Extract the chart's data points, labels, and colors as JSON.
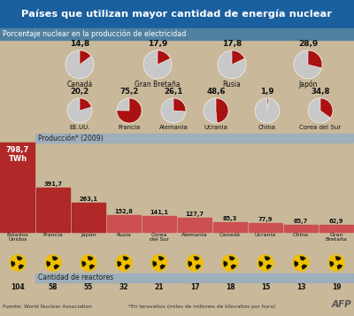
{
  "title": "Países que utilizan mayor cantidad de energía nuclear",
  "subtitle": "Porcentaje nuclear en la producción de electricidad",
  "bg_color": "#c9b99a",
  "header_bg": "#1a5f9e",
  "subtitle_bg": "#5080a0",
  "top_pies": [
    {
      "label": "Canadá",
      "value": 14.8,
      "xf": 0.225
    },
    {
      "label": "Gran Bretaña",
      "value": 17.9,
      "xf": 0.445
    },
    {
      "label": "Rusia",
      "value": 17.8,
      "xf": 0.655
    },
    {
      "label": "Japón",
      "value": 28.9,
      "xf": 0.87
    }
  ],
  "bottom_pies": [
    {
      "label": "EE.UU.",
      "value": 20.2,
      "xf": 0.225
    },
    {
      "label": "Francia",
      "value": 75.2,
      "xf": 0.365
    },
    {
      "label": "Alemania",
      "value": 26.1,
      "xf": 0.49
    },
    {
      "label": "Ucrania",
      "value": 48.6,
      "xf": 0.61
    },
    {
      "label": "China",
      "value": 1.9,
      "xf": 0.755
    },
    {
      "label": "Corea del Sur",
      "value": 34.8,
      "xf": 0.905
    }
  ],
  "bars": [
    {
      "label": "Estados\nUnidos",
      "value": 798.7,
      "reactors": 104
    },
    {
      "label": "Francia",
      "value": 391.7,
      "reactors": 58
    },
    {
      "label": "Japón",
      "value": 263.1,
      "reactors": 55
    },
    {
      "label": "Rusia",
      "value": 152.8,
      "reactors": 32
    },
    {
      "label": "Corea\ndel Sur",
      "value": 141.1,
      "reactors": 21
    },
    {
      "label": "Alemania",
      "value": 127.7,
      "reactors": 17
    },
    {
      "label": "Canadá",
      "value": 85.3,
      "reactors": 18
    },
    {
      "label": "Ucrania",
      "value": 77.9,
      "reactors": 15
    },
    {
      "label": "China",
      "value": 65.7,
      "reactors": 13
    },
    {
      "label": "Gran\nBretaña",
      "value": 62.9,
      "reactors": 19
    }
  ],
  "bar_color_dark": "#b02828",
  "bar_color_light": "#cc5050",
  "left_twh": "798,7\nTWh",
  "produccion_label": "Producción* (2009)",
  "cantidad_label": "Cantidad de reactores",
  "fuente": "Fuente: World Nuclear Association",
  "nota": "*En teravatios (miles de millones de kilovatios por hora)",
  "afp": "AFP"
}
